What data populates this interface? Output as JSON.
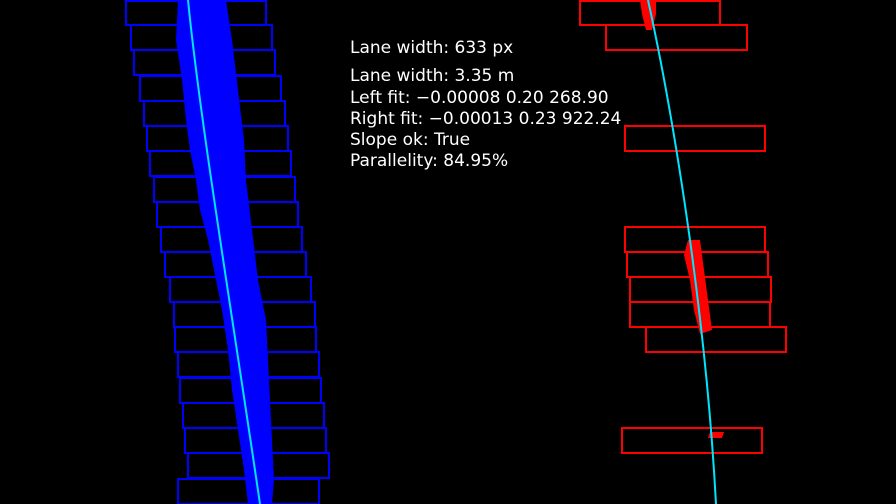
{
  "colors": {
    "background": "#000000",
    "left_lane": "#0000ff",
    "right_lane": "#ff0000",
    "fit_line": "#00e5ff",
    "text": "#ffffff"
  },
  "stats": {
    "lane_width_px": "Lane width: 633 px",
    "lane_width_m": "Lane width: 3.35 m",
    "left_fit": "Left fit: −0.00008 0.20 268.90",
    "right_fit": "Right fit: −0.00013 0.23 922.24",
    "slope_ok": "Slope ok: True",
    "parallelity": "Parallelity: 84.95%"
  },
  "windows": {
    "left_count": 20,
    "right_count": 8
  }
}
